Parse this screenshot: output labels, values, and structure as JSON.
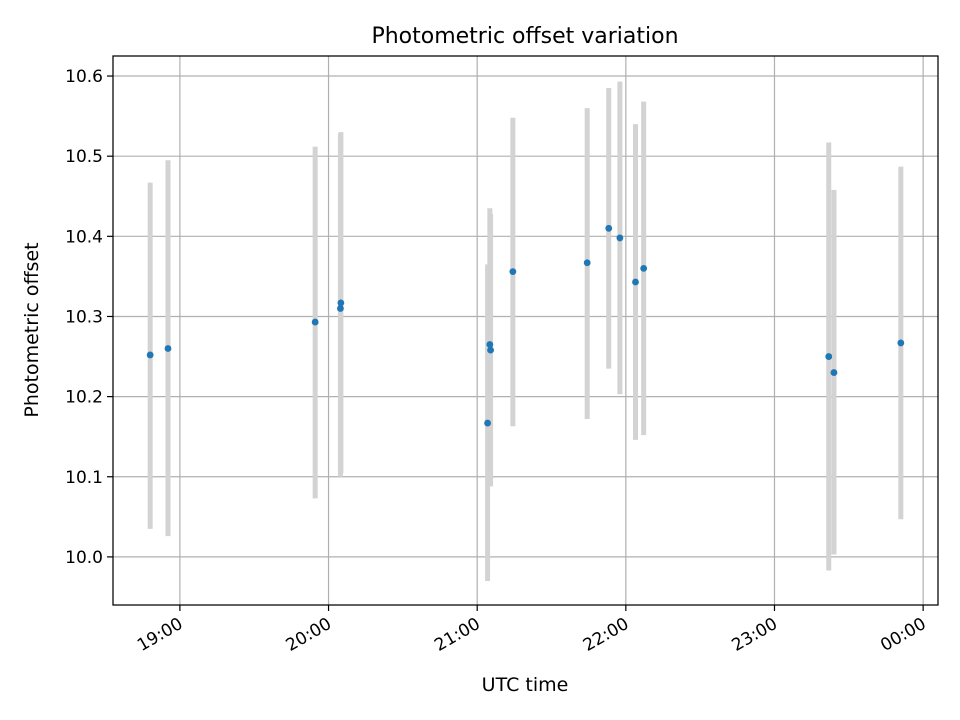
{
  "chart_data": {
    "type": "scatter",
    "title": "Photometric offset variation",
    "xlabel": "UTC time",
    "ylabel": "Photometric offset",
    "x_tick_labels": [
      "19:00",
      "20:00",
      "21:00",
      "22:00",
      "23:00",
      "00:00"
    ],
    "x_ticks_hours": [
      19,
      20,
      21,
      22,
      23,
      24
    ],
    "xlim_hours": [
      18.55,
      24.1
    ],
    "ylim": [
      9.94,
      10.625
    ],
    "y_ticks": [
      10.0,
      10.1,
      10.2,
      10.3,
      10.4,
      10.5,
      10.6
    ],
    "y_tick_labels": [
      "10.0",
      "10.1",
      "10.2",
      "10.3",
      "10.4",
      "10.5",
      "10.6"
    ],
    "grid": true,
    "colors": {
      "marker": "#1f77b4",
      "errorbar": "#d3d3d3",
      "grid": "#b0b0b0"
    },
    "points": [
      {
        "time": "18:48",
        "hour": 18.8,
        "y": 10.252,
        "err_low": 10.035,
        "err_high": 10.467
      },
      {
        "time": "18:55",
        "hour": 18.92,
        "y": 10.26,
        "err_low": 10.026,
        "err_high": 10.495
      },
      {
        "time": "19:55",
        "hour": 19.91,
        "y": 10.293,
        "err_low": 10.073,
        "err_high": 10.512
      },
      {
        "time": "20:05",
        "hour": 20.08,
        "y": 10.31,
        "err_low": 10.1,
        "err_high": 10.528
      },
      {
        "time": "20:05",
        "hour": 20.083,
        "y": 10.317,
        "err_low": 10.104,
        "err_high": 10.53
      },
      {
        "time": "21:04",
        "hour": 21.07,
        "y": 10.167,
        "err_low": 9.97,
        "err_high": 10.365
      },
      {
        "time": "21:05",
        "hour": 21.085,
        "y": 10.265,
        "err_low": 10.095,
        "err_high": 10.435
      },
      {
        "time": "21:05",
        "hour": 21.09,
        "y": 10.258,
        "err_low": 10.088,
        "err_high": 10.428
      },
      {
        "time": "21:14",
        "hour": 21.24,
        "y": 10.356,
        "err_low": 10.163,
        "err_high": 10.548
      },
      {
        "time": "21:44",
        "hour": 21.74,
        "y": 10.367,
        "err_low": 10.172,
        "err_high": 10.56
      },
      {
        "time": "21:53",
        "hour": 21.885,
        "y": 10.41,
        "err_low": 10.235,
        "err_high": 10.585
      },
      {
        "time": "21:57",
        "hour": 21.96,
        "y": 10.398,
        "err_low": 10.203,
        "err_high": 10.593
      },
      {
        "time": "22:04",
        "hour": 22.065,
        "y": 10.343,
        "err_low": 10.146,
        "err_high": 10.54
      },
      {
        "time": "22:07",
        "hour": 22.12,
        "y": 10.36,
        "err_low": 10.152,
        "err_high": 10.568
      },
      {
        "time": "23:22",
        "hour": 23.365,
        "y": 10.25,
        "err_low": 9.983,
        "err_high": 10.517
      },
      {
        "time": "23:24",
        "hour": 23.4,
        "y": 10.23,
        "err_low": 10.003,
        "err_high": 10.458
      },
      {
        "time": "23:51",
        "hour": 23.85,
        "y": 10.267,
        "err_low": 10.047,
        "err_high": 10.487
      }
    ]
  }
}
